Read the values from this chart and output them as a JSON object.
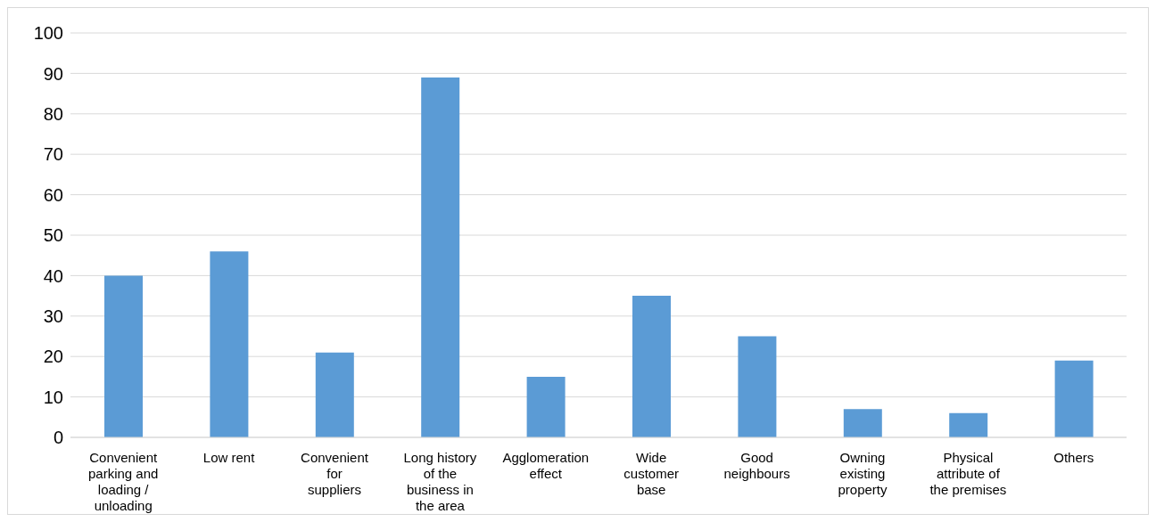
{
  "chart_data": {
    "type": "bar",
    "categories": [
      "Convenient parking and loading / unloading",
      "Low rent",
      "Convenient for suppliers",
      "Long history of the business in the area",
      "Agglomeration effect",
      "Wide customer base",
      "Good neighbours",
      "Owning existing property",
      "Physical attribute of the premises",
      "Others"
    ],
    "values": [
      40,
      46,
      21,
      89,
      15,
      35,
      25,
      7,
      6,
      19
    ],
    "color": "#5b9bd5",
    "ylim": [
      0,
      100
    ],
    "yticks": [
      0,
      10,
      20,
      30,
      40,
      50,
      60,
      70,
      80,
      90,
      100
    ],
    "grid": "y"
  }
}
